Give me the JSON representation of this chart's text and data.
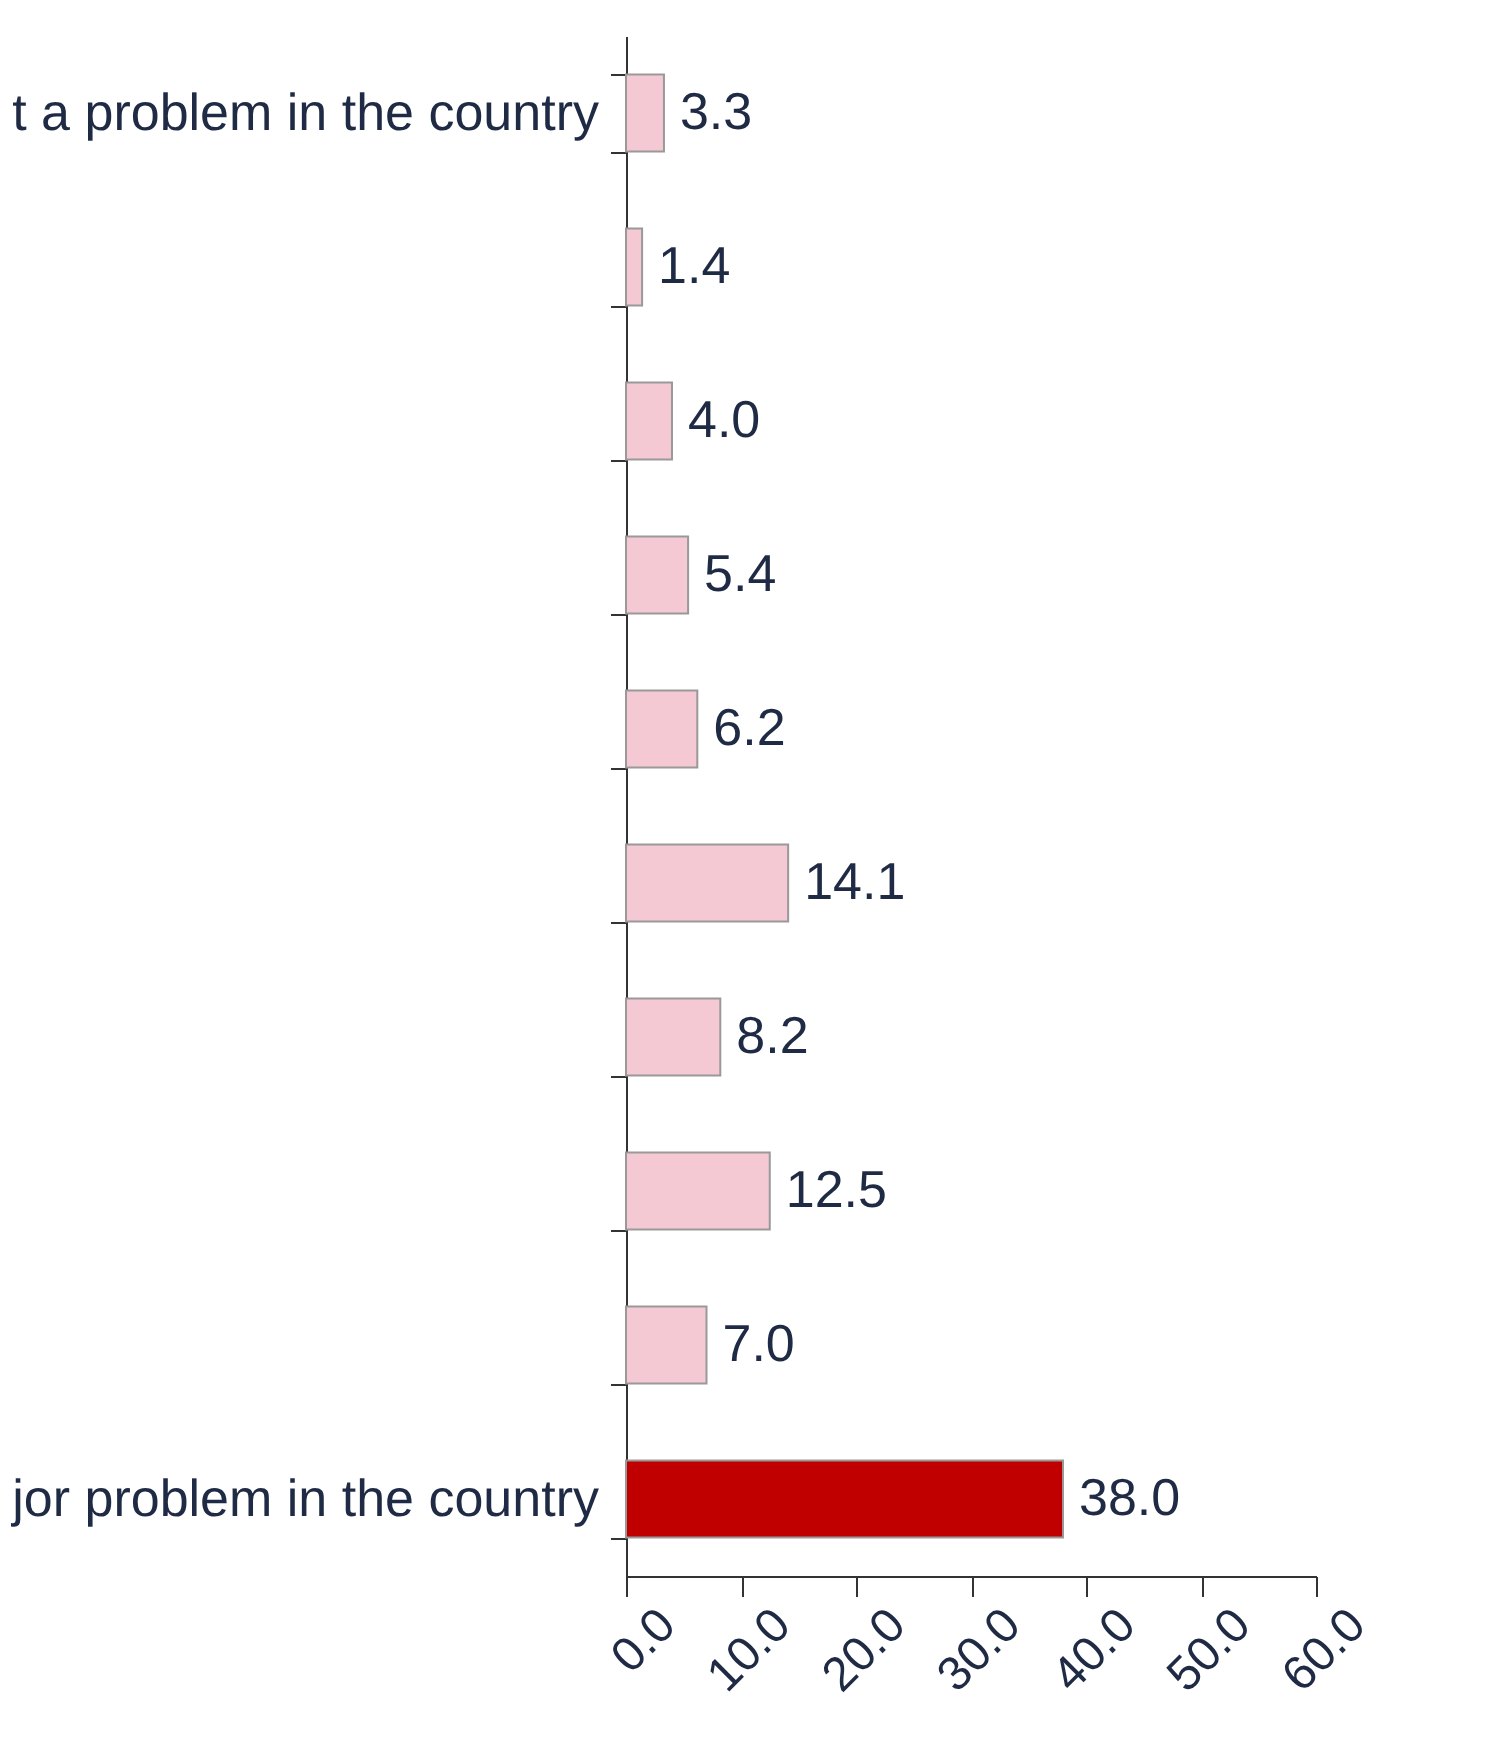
{
  "chart_data": {
    "type": "bar",
    "orientation": "horizontal",
    "categories": [
      "t a problem in the country",
      null,
      null,
      null,
      null,
      null,
      null,
      null,
      null,
      "jor problem in the country"
    ],
    "values": [
      3.3,
      1.4,
      4.0,
      5.4,
      6.2,
      14.1,
      8.2,
      12.5,
      7.0,
      38.0
    ],
    "value_labels": [
      "3.3",
      "1.4",
      "4.0",
      "5.4",
      "6.2",
      "14.1",
      "8.2",
      "12.5",
      "7.0",
      "38.0"
    ],
    "colors": [
      "#f5c9d3",
      "#f5c9d3",
      "#f5c9d3",
      "#f5c9d3",
      "#f5c9d3",
      "#f5c9d3",
      "#f5c9d3",
      "#f5c9d3",
      "#f5c9d3",
      "#c00000"
    ],
    "xlim": [
      0,
      60
    ],
    "xticks": [
      {
        "value": 0,
        "label": "0.0"
      },
      {
        "value": 10,
        "label": "10.0"
      },
      {
        "value": 20,
        "label": "20.0"
      },
      {
        "value": 30,
        "label": "30.0"
      },
      {
        "value": 40,
        "label": "40.0"
      },
      {
        "value": 50,
        "label": "50.0"
      },
      {
        "value": 60,
        "label": "60.0"
      }
    ],
    "grid": false
  }
}
